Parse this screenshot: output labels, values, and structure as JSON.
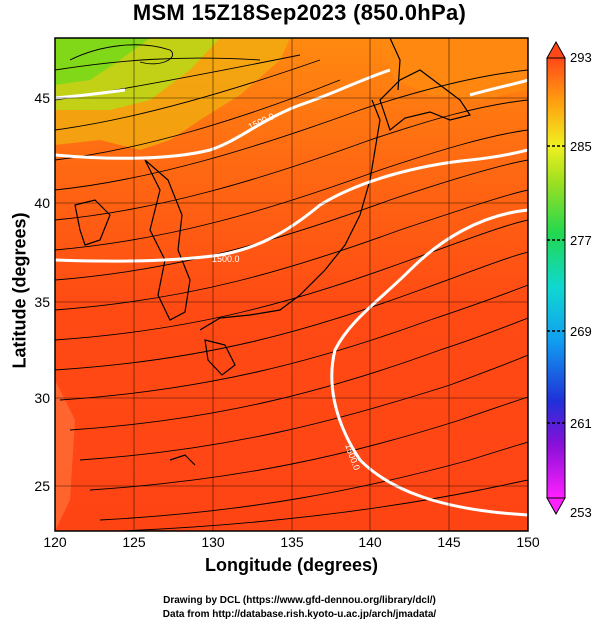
{
  "title": "MSM 15Z18Sep2023 (850.0hPa)",
  "x_axis": {
    "label": "Longitude (degrees)",
    "ticks": [
      "120",
      "125",
      "130",
      "135",
      "140",
      "145",
      "150"
    ]
  },
  "y_axis": {
    "label": "Latitude  (degrees)",
    "ticks": [
      "25",
      "30",
      "35",
      "40",
      "45"
    ]
  },
  "colorbar": {
    "ticks": [
      "293",
      "285",
      "277",
      "269",
      "261",
      "253"
    ]
  },
  "contours": {
    "labels": [
      "1500.0",
      "1500.0",
      "1500.0"
    ]
  },
  "credits": {
    "line1": "Drawing by DCL (https://www.gfd-dennou.org/library/dcl/)",
    "line2": "Data from http://database.rish.kyoto-u.ac.jp/arch/jmadata/"
  },
  "colors": {
    "warm": "#ff4a14",
    "mid": "#ff8a10",
    "cool": "#7ad81a",
    "coast": "#000000",
    "contour": "#ffffff"
  }
}
